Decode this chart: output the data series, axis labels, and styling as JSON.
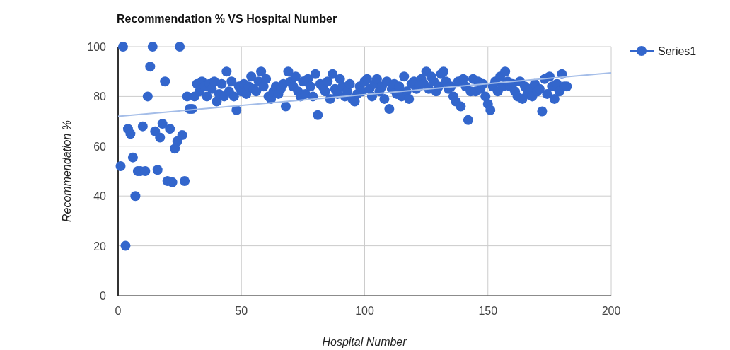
{
  "chart_data": {
    "type": "scatter",
    "title": "Recommendation % VS Hospital Number",
    "xlabel": "Hospital Number",
    "ylabel": "Recommendation %",
    "xlim": [
      0,
      200
    ],
    "xticks": [
      0,
      50,
      100,
      150,
      200
    ],
    "ylim": [
      0,
      100
    ],
    "yticks": [
      0,
      20,
      40,
      60,
      80,
      100
    ],
    "grid": true,
    "legend": "top right",
    "marker": "circle",
    "series": [
      {
        "name": "Series1",
        "color": "#3366cc",
        "x": [
          1,
          2,
          3,
          4,
          5,
          6,
          7,
          8,
          9,
          10,
          11,
          12,
          13,
          14,
          15,
          16,
          17,
          18,
          19,
          20,
          21,
          22,
          23,
          24,
          25,
          26,
          27,
          28,
          29,
          30,
          31,
          32,
          33,
          34,
          35,
          36,
          37,
          38,
          39,
          40,
          41,
          42,
          43,
          44,
          45,
          46,
          47,
          48,
          49,
          50,
          51,
          52,
          53,
          54,
          55,
          56,
          57,
          58,
          59,
          60,
          61,
          62,
          63,
          64,
          65,
          66,
          67,
          68,
          69,
          70,
          71,
          72,
          73,
          74,
          75,
          76,
          77,
          78,
          79,
          80,
          81,
          82,
          83,
          84,
          85,
          86,
          87,
          88,
          89,
          90,
          91,
          92,
          93,
          94,
          95,
          96,
          97,
          98,
          99,
          100,
          101,
          102,
          103,
          104,
          105,
          106,
          107,
          108,
          109,
          110,
          111,
          112,
          113,
          114,
          115,
          116,
          117,
          118,
          119,
          120,
          121,
          122,
          123,
          124,
          125,
          126,
          127,
          128,
          129,
          130,
          131,
          132,
          133,
          134,
          135,
          136,
          137,
          138,
          139,
          140,
          141,
          142,
          143,
          144,
          145,
          146,
          147,
          148,
          149,
          150,
          151,
          152,
          153,
          154,
          155,
          156,
          157,
          158,
          159,
          160,
          161,
          162,
          163,
          164,
          165,
          166,
          167,
          168,
          169,
          170,
          171,
          172,
          173,
          174,
          175,
          176,
          177,
          178,
          179,
          180,
          181,
          182
        ],
        "values": [
          52,
          100,
          20,
          67,
          65,
          55.5,
          40,
          50,
          50,
          68,
          50,
          80,
          92,
          100,
          66,
          50.5,
          63.5,
          69,
          86,
          46,
          67,
          45.5,
          59,
          62,
          100,
          64.5,
          46,
          80,
          75,
          75,
          80,
          85,
          82,
          86,
          84,
          80,
          85,
          83,
          86,
          78,
          81,
          85,
          80,
          90,
          82,
          86,
          80,
          74.5,
          84,
          82,
          85,
          81,
          84,
          88,
          83,
          82,
          86,
          90,
          84,
          87,
          80,
          79,
          82,
          84,
          81,
          83,
          85,
          76,
          90,
          86,
          84,
          88,
          82,
          80,
          86,
          81,
          87,
          84,
          80,
          89,
          72.5,
          85,
          84,
          82,
          86,
          79,
          89,
          83,
          81,
          87,
          84,
          80,
          82,
          85,
          79,
          78,
          81,
          84,
          82,
          86,
          87,
          83,
          80,
          85,
          87,
          82,
          84,
          79,
          86,
          75,
          83,
          85,
          81,
          84,
          80,
          88,
          82,
          79,
          85,
          86,
          83,
          84,
          87,
          85,
          90,
          83,
          88,
          86,
          82,
          84,
          89,
          90,
          86,
          83,
          84,
          80,
          78,
          86,
          76,
          87,
          84,
          70.5,
          82,
          87,
          82,
          86,
          83,
          85,
          80,
          77,
          74.5,
          84,
          86,
          82,
          88,
          84,
          90,
          86,
          84,
          85,
          82,
          80,
          86,
          79,
          84,
          81,
          83,
          80,
          85,
          82,
          83,
          74,
          87,
          81,
          88,
          84,
          79,
          85,
          82,
          89,
          84,
          84
        ]
      },
      {
        "type": "line",
        "marker": "none",
        "color": "#a4bde8",
        "x": [
          0,
          200
        ],
        "values": [
          72,
          89.5
        ]
      }
    ]
  }
}
